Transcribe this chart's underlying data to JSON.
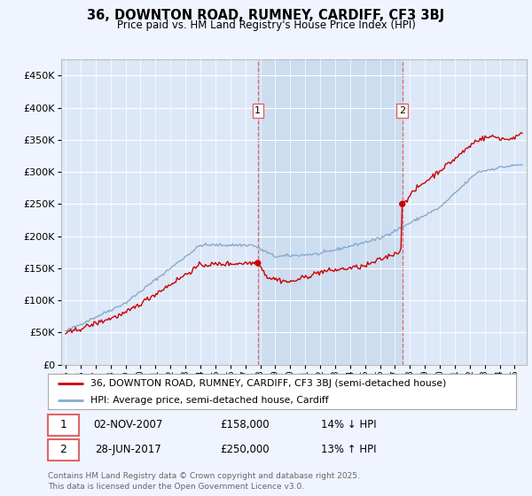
{
  "title": "36, DOWNTON ROAD, RUMNEY, CARDIFF, CF3 3BJ",
  "subtitle": "Price paid vs. HM Land Registry's House Price Index (HPI)",
  "background_color": "#f0f4ff",
  "plot_bg_color": "#dce8f8",
  "ylim": [
    0,
    475000
  ],
  "yticks": [
    0,
    50000,
    100000,
    150000,
    200000,
    250000,
    300000,
    350000,
    400000,
    450000
  ],
  "year_start": 1995,
  "year_end": 2025,
  "transaction1_date": 2007.84,
  "transaction1_price": 158000,
  "transaction2_date": 2017.49,
  "transaction2_price": 250000,
  "legend_line1": "36, DOWNTON ROAD, RUMNEY, CARDIFF, CF3 3BJ (semi-detached house)",
  "legend_line2": "HPI: Average price, semi-detached house, Cardiff",
  "footer": "Contains HM Land Registry data © Crown copyright and database right 2025.\nThis data is licensed under the Open Government Licence v3.0.",
  "line_color_price": "#cc0000",
  "line_color_hpi": "#88aacc",
  "vline_color": "#dd6666",
  "span_color": "#ccddf0",
  "grid_color": "#dddddd",
  "trans1_date_str": "02-NOV-2007",
  "trans1_price_str": "£158,000",
  "trans1_hpi_str": "14% ↓ HPI",
  "trans2_date_str": "28-JUN-2017",
  "trans2_price_str": "£250,000",
  "trans2_hpi_str": "13% ↑ HPI"
}
